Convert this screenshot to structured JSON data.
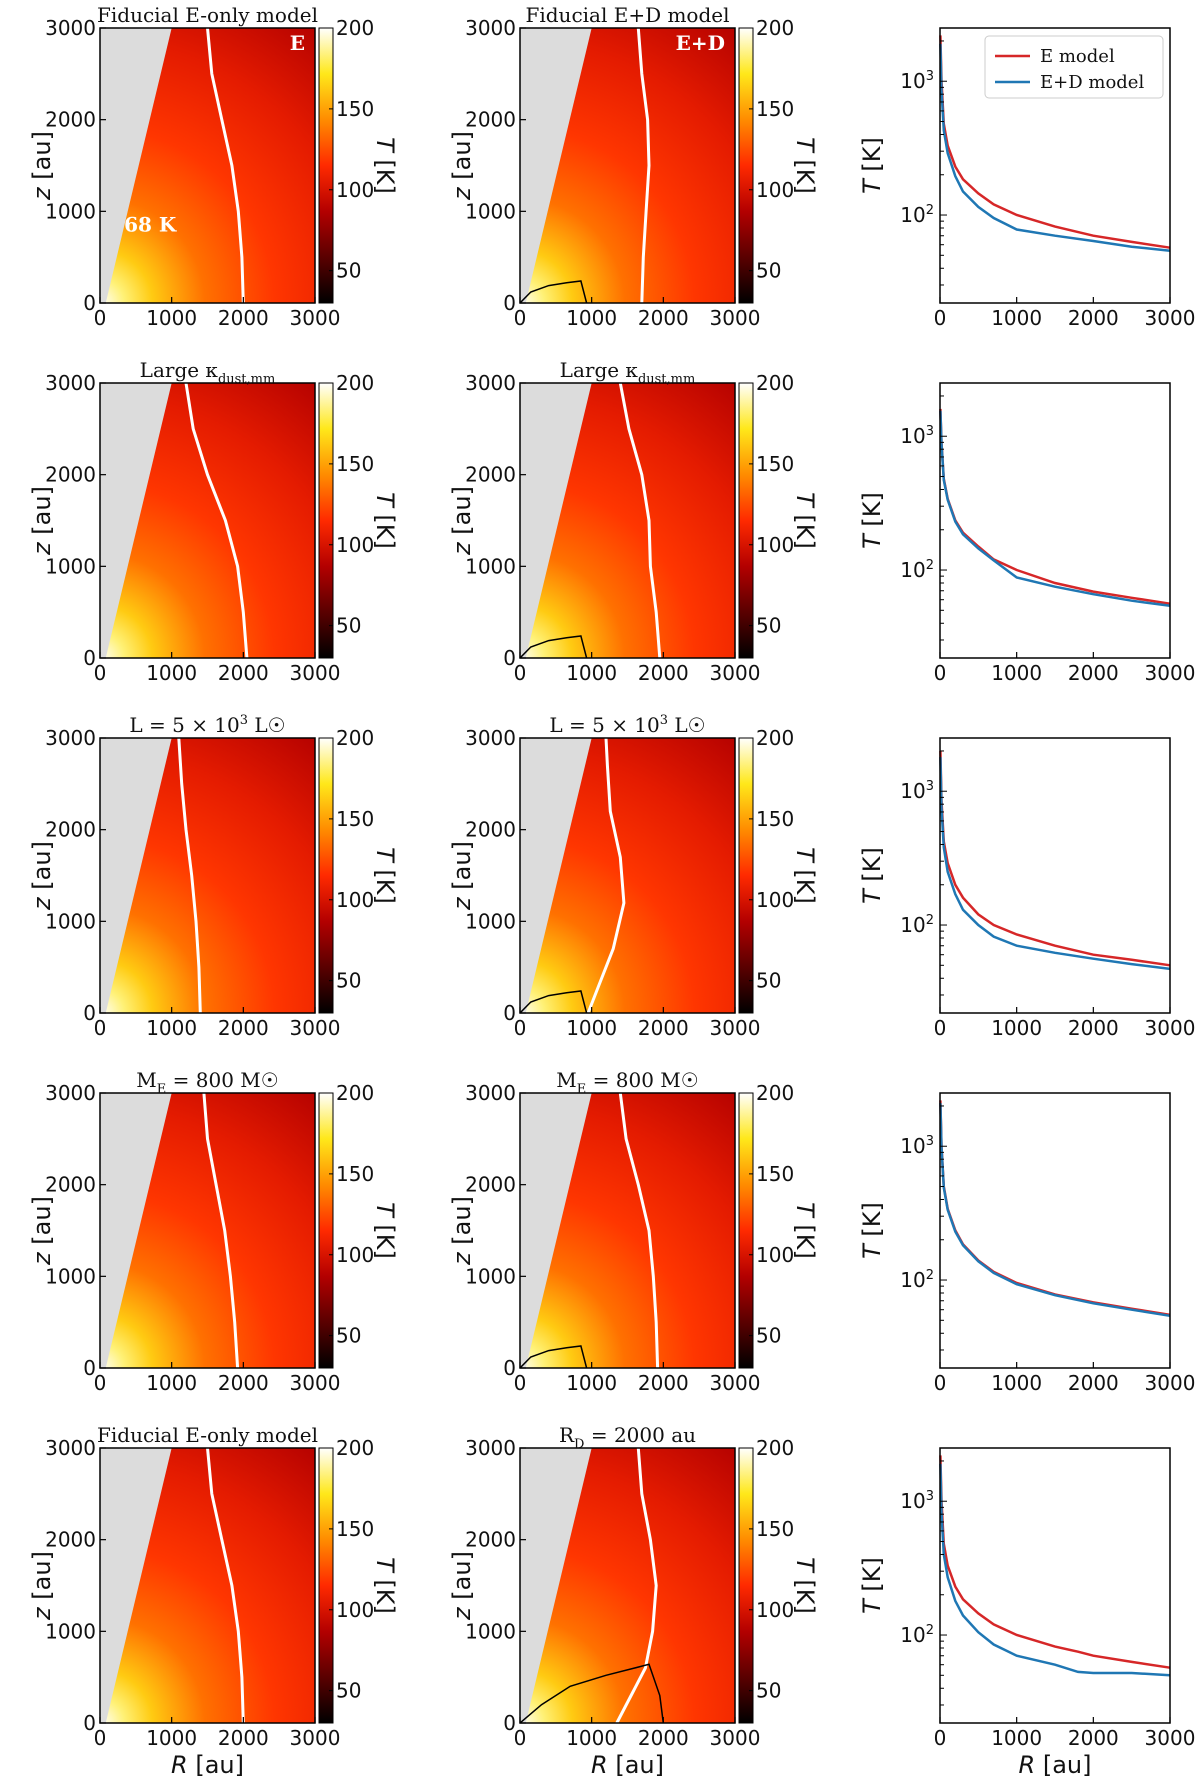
{
  "figure": {
    "colorbar_ticks": [
      "50",
      "100",
      "150",
      "200"
    ],
    "colorbar_label": "T [K]",
    "colormap": [
      "#000000",
      "#5a0000",
      "#b30000",
      "#ff2a00",
      "#ff8c00",
      "#ffe81a",
      "#ffffff"
    ],
    "masked_color": "#dcdcdc",
    "white_contour_color": "#ffffff",
    "disk_outline_color": "#000000",
    "series_colors": {
      "E model": "#d62728",
      "E+D model": "#1f77b4"
    }
  },
  "chart_data": [
    {
      "type": "heatmap",
      "row": 1,
      "col": 1,
      "title": "Fiducial E-only model",
      "inset_label": "E",
      "contour_label": "68 K",
      "xlabel": "",
      "ylabel": "z [au]",
      "xlim": [
        0,
        3000
      ],
      "ylim": [
        0,
        3000
      ],
      "xticks": [
        "0",
        "1000",
        "2000",
        "3000"
      ],
      "yticks": [
        "0",
        "1000",
        "2000",
        "3000"
      ],
      "clim": [
        30,
        200
      ],
      "colorbar_label": "T [K]",
      "contour_68K_R_at_z": {
        "z": [
          0,
          500,
          1000,
          1500,
          2000,
          2500,
          3000
        ],
        "R": [
          2000,
          1980,
          1930,
          1840,
          1700,
          1560,
          1500
        ]
      },
      "disk_outline": null
    },
    {
      "type": "heatmap",
      "row": 1,
      "col": 2,
      "title": "Fiducial E+D model",
      "inset_label": "E+D",
      "xlabel": "",
      "ylabel": "z [au]",
      "xlim": [
        0,
        3000
      ],
      "ylim": [
        0,
        3000
      ],
      "xticks": [
        "0",
        "1000",
        "2000",
        "3000"
      ],
      "yticks": [
        "0",
        "1000",
        "2000",
        "3000"
      ],
      "clim": [
        30,
        200
      ],
      "colorbar_label": "T [K]",
      "contour_68K_R_at_z": {
        "z": [
          0,
          500,
          1000,
          1500,
          2000,
          2500,
          3000
        ],
        "R": [
          1700,
          1720,
          1760,
          1800,
          1780,
          1700,
          1650
        ]
      },
      "disk_outline": {
        "R": [
          0,
          150,
          400,
          650,
          850,
          930
        ],
        "z": [
          0,
          120,
          190,
          220,
          240,
          0
        ]
      }
    },
    {
      "type": "line",
      "row": 1,
      "col": 3,
      "xlabel": "",
      "ylabel": "T [K]",
      "yscale": "log",
      "xlim": [
        0,
        3000
      ],
      "ylim": [
        22,
        2500
      ],
      "xticks": [
        "0",
        "1000",
        "2000",
        "3000"
      ],
      "yticks": [
        "10^2",
        "10^3"
      ],
      "legend": [
        "E model",
        "E+D model"
      ],
      "legend_loc": "upper right",
      "x": [
        5,
        20,
        50,
        100,
        200,
        300,
        500,
        700,
        1000,
        1500,
        2000,
        2500,
        3000
      ],
      "series": [
        {
          "name": "E model",
          "values": [
            2200,
            1000,
            480,
            330,
            230,
            185,
            145,
            120,
            100,
            82,
            70,
            63,
            57
          ]
        },
        {
          "name": "E+D model",
          "values": [
            1900,
            850,
            430,
            290,
            195,
            150,
            115,
            95,
            78,
            70,
            64,
            58,
            54
          ]
        }
      ]
    },
    {
      "type": "heatmap",
      "row": 2,
      "col": 1,
      "title": "Large κ_dust,mm",
      "xlabel": "",
      "ylabel": "z [au]",
      "xlim": [
        0,
        3000
      ],
      "ylim": [
        0,
        3000
      ],
      "xticks": [
        "0",
        "1000",
        "2000",
        "3000"
      ],
      "yticks": [
        "0",
        "1000",
        "2000",
        "3000"
      ],
      "clim": [
        30,
        200
      ],
      "colorbar_label": "T [K]",
      "contour_68K_R_at_z": {
        "z": [
          0,
          500,
          1000,
          1500,
          2000,
          2500,
          3000
        ],
        "R": [
          2050,
          2000,
          1920,
          1750,
          1500,
          1300,
          1200
        ]
      },
      "disk_outline": null
    },
    {
      "type": "heatmap",
      "row": 2,
      "col": 2,
      "title": "Large κ_dust,mm",
      "xlabel": "",
      "ylabel": "z [au]",
      "xlim": [
        0,
        3000
      ],
      "ylim": [
        0,
        3000
      ],
      "xticks": [
        "0",
        "1000",
        "2000",
        "3000"
      ],
      "yticks": [
        "0",
        "1000",
        "2000",
        "3000"
      ],
      "clim": [
        30,
        200
      ],
      "colorbar_label": "T [K]",
      "contour_68K_R_at_z": {
        "z": [
          0,
          500,
          1000,
          1500,
          2000,
          2500,
          3000
        ],
        "R": [
          1950,
          1900,
          1820,
          1800,
          1700,
          1520,
          1400
        ]
      },
      "disk_outline": {
        "R": [
          0,
          150,
          400,
          650,
          850,
          930
        ],
        "z": [
          0,
          120,
          190,
          220,
          240,
          0
        ]
      }
    },
    {
      "type": "line",
      "row": 2,
      "col": 3,
      "xlabel": "",
      "ylabel": "T [K]",
      "yscale": "log",
      "xlim": [
        0,
        3000
      ],
      "ylim": [
        22,
        2500
      ],
      "xticks": [
        "0",
        "1000",
        "2000",
        "3000"
      ],
      "yticks": [
        "10^2",
        "10^3"
      ],
      "x": [
        5,
        20,
        50,
        100,
        200,
        300,
        500,
        700,
        1000,
        1500,
        2000,
        2500,
        3000
      ],
      "series": [
        {
          "name": "E model",
          "values": [
            1600,
            900,
            480,
            340,
            235,
            190,
            150,
            120,
            100,
            80,
            69,
            62,
            56
          ]
        },
        {
          "name": "E+D model",
          "values": [
            1550,
            880,
            470,
            335,
            230,
            185,
            145,
            118,
            88,
            75,
            66,
            59,
            54
          ]
        }
      ]
    },
    {
      "type": "heatmap",
      "row": 3,
      "col": 1,
      "title": "L = 5 × 10^3 L☉",
      "xlabel": "",
      "ylabel": "z [au]",
      "xlim": [
        0,
        3000
      ],
      "ylim": [
        0,
        3000
      ],
      "xticks": [
        "0",
        "1000",
        "2000",
        "3000"
      ],
      "yticks": [
        "0",
        "1000",
        "2000",
        "3000"
      ],
      "clim": [
        30,
        200
      ],
      "colorbar_label": "T [K]",
      "contour_68K_R_at_z": {
        "z": [
          0,
          500,
          1000,
          1500,
          2000,
          2500,
          3000
        ],
        "R": [
          1400,
          1380,
          1340,
          1280,
          1200,
          1140,
          1100
        ]
      },
      "disk_outline": null
    },
    {
      "type": "heatmap",
      "row": 3,
      "col": 2,
      "title": "L = 5 × 10^3 L☉",
      "xlabel": "",
      "ylabel": "z [au]",
      "xlim": [
        0,
        3000
      ],
      "ylim": [
        0,
        3000
      ],
      "xticks": [
        "0",
        "1000",
        "2000",
        "3000"
      ],
      "yticks": [
        "0",
        "1000",
        "2000",
        "3000"
      ],
      "clim": [
        30,
        200
      ],
      "colorbar_label": "T [K]",
      "contour_68K_R_at_z": {
        "z": [
          0,
          300,
          700,
          1200,
          1700,
          2200,
          2700,
          3000
        ],
        "R": [
          950,
          1100,
          1300,
          1450,
          1400,
          1260,
          1220,
          1200
        ]
      },
      "disk_outline": {
        "R": [
          0,
          150,
          400,
          650,
          850,
          930
        ],
        "z": [
          0,
          120,
          190,
          220,
          240,
          0
        ]
      }
    },
    {
      "type": "line",
      "row": 3,
      "col": 3,
      "xlabel": "",
      "ylabel": "T [K]",
      "yscale": "log",
      "xlim": [
        0,
        3000
      ],
      "ylim": [
        22,
        2500
      ],
      "xticks": [
        "0",
        "1000",
        "2000",
        "3000"
      ],
      "yticks": [
        "10^2",
        "10^3"
      ],
      "x": [
        5,
        20,
        50,
        100,
        200,
        300,
        500,
        700,
        1000,
        1500,
        2000,
        2500,
        3000
      ],
      "series": [
        {
          "name": "E model",
          "values": [
            2000,
            850,
            420,
            290,
            200,
            160,
            120,
            100,
            85,
            70,
            60,
            55,
            50
          ]
        },
        {
          "name": "E+D model",
          "values": [
            1800,
            750,
            380,
            250,
            170,
            130,
            100,
            82,
            70,
            62,
            56,
            51,
            47
          ]
        }
      ]
    },
    {
      "type": "heatmap",
      "row": 4,
      "col": 1,
      "title": "M_E = 800 M☉",
      "xlabel": "",
      "ylabel": "z [au]",
      "xlim": [
        0,
        3000
      ],
      "ylim": [
        0,
        3000
      ],
      "xticks": [
        "0",
        "1000",
        "2000",
        "3000"
      ],
      "yticks": [
        "0",
        "1000",
        "2000",
        "3000"
      ],
      "clim": [
        30,
        200
      ],
      "colorbar_label": "T [K]",
      "contour_68K_R_at_z": {
        "z": [
          0,
          500,
          1000,
          1500,
          2000,
          2500,
          3000
        ],
        "R": [
          1920,
          1880,
          1820,
          1740,
          1620,
          1500,
          1450
        ]
      },
      "disk_outline": null
    },
    {
      "type": "heatmap",
      "row": 4,
      "col": 2,
      "title": "M_E = 800 M☉",
      "xlabel": "",
      "ylabel": "z [au]",
      "xlim": [
        0,
        3000
      ],
      "ylim": [
        0,
        3000
      ],
      "xticks": [
        "0",
        "1000",
        "2000",
        "3000"
      ],
      "yticks": [
        "0",
        "1000",
        "2000",
        "3000"
      ],
      "clim": [
        30,
        200
      ],
      "colorbar_label": "T [K]",
      "contour_68K_R_at_z": {
        "z": [
          0,
          500,
          1000,
          1500,
          2000,
          2500,
          3000
        ],
        "R": [
          1920,
          1900,
          1860,
          1800,
          1650,
          1480,
          1400
        ]
      },
      "disk_outline": {
        "R": [
          0,
          150,
          400,
          650,
          850,
          930
        ],
        "z": [
          0,
          120,
          190,
          220,
          240,
          0
        ]
      }
    },
    {
      "type": "line",
      "row": 4,
      "col": 3,
      "xlabel": "",
      "ylabel": "T [K]",
      "yscale": "log",
      "xlim": [
        0,
        3000
      ],
      "ylim": [
        22,
        2500
      ],
      "xticks": [
        "0",
        "1000",
        "2000",
        "3000"
      ],
      "yticks": [
        "10^2",
        "10^3"
      ],
      "x": [
        5,
        20,
        50,
        100,
        200,
        300,
        500,
        700,
        1000,
        1500,
        2000,
        2500,
        3000
      ],
      "series": [
        {
          "name": "E model",
          "values": [
            2200,
            1000,
            500,
            340,
            235,
            185,
            140,
            115,
            95,
            78,
            68,
            61,
            55
          ]
        },
        {
          "name": "E+D model",
          "values": [
            2100,
            980,
            490,
            335,
            230,
            182,
            138,
            113,
            93,
            77,
            67,
            60,
            54
          ]
        }
      ]
    },
    {
      "type": "heatmap",
      "row": 5,
      "col": 1,
      "title": "Fiducial E-only model",
      "xlabel": "R [au]",
      "ylabel": "z [au]",
      "xlim": [
        0,
        3000
      ],
      "ylim": [
        0,
        3000
      ],
      "xticks": [
        "0",
        "1000",
        "2000",
        "3000"
      ],
      "yticks": [
        "0",
        "1000",
        "2000",
        "3000"
      ],
      "clim": [
        30,
        200
      ],
      "colorbar_label": "T [K]",
      "contour_68K_R_at_z": {
        "z": [
          0,
          500,
          1000,
          1500,
          2000,
          2500,
          3000
        ],
        "R": [
          2000,
          1980,
          1930,
          1840,
          1700,
          1560,
          1500
        ]
      },
      "disk_outline": null
    },
    {
      "type": "heatmap",
      "row": 5,
      "col": 2,
      "title": "R_D = 2000 au",
      "xlabel": "R [au]",
      "ylabel": "z [au]",
      "xlim": [
        0,
        3000
      ],
      "ylim": [
        0,
        3000
      ],
      "xticks": [
        "0",
        "1000",
        "2000",
        "3000"
      ],
      "yticks": [
        "0",
        "1000",
        "2000",
        "3000"
      ],
      "clim": [
        30,
        200
      ],
      "colorbar_label": "T [K]",
      "contour_68K_R_at_z": {
        "z": [
          0,
          300,
          600,
          1000,
          1500,
          2000,
          2500,
          3000
        ],
        "R": [
          1350,
          1550,
          1750,
          1850,
          1900,
          1820,
          1700,
          1650
        ]
      },
      "disk_outline": {
        "R": [
          0,
          300,
          700,
          1200,
          1600,
          1800,
          1950,
          2000
        ],
        "z": [
          0,
          200,
          400,
          520,
          600,
          640,
          300,
          0
        ]
      }
    },
    {
      "type": "line",
      "row": 5,
      "col": 3,
      "xlabel": "R [au]",
      "ylabel": "T [K]",
      "yscale": "log",
      "xlim": [
        0,
        3000
      ],
      "ylim": [
        22,
        2500
      ],
      "xticks": [
        "0",
        "1000",
        "2000",
        "3000"
      ],
      "yticks": [
        "10^2",
        "10^3"
      ],
      "x": [
        5,
        20,
        50,
        100,
        200,
        300,
        500,
        700,
        1000,
        1500,
        1800,
        2000,
        2500,
        3000
      ],
      "series": [
        {
          "name": "E model",
          "values": [
            2200,
            1000,
            480,
            330,
            230,
            185,
            145,
            120,
            100,
            82,
            75,
            70,
            63,
            57
          ]
        },
        {
          "name": "E+D model",
          "values": [
            1900,
            820,
            400,
            270,
            180,
            140,
            105,
            85,
            70,
            60,
            53,
            52,
            52,
            50
          ]
        }
      ]
    }
  ]
}
